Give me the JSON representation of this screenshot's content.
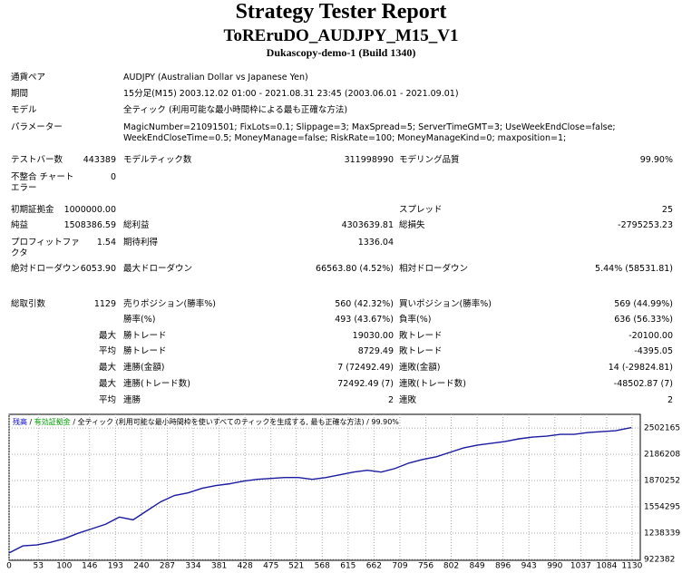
{
  "header": {
    "title": "Strategy Tester Report",
    "expert": "ToREruDO_AUDJPY_M15_V1",
    "server": "Dukascopy-demo-1 (Build 1340)"
  },
  "info": [
    [
      "通貨ペア",
      "AUDJPY (Australian Dollar vs Japanese Yen)"
    ],
    [
      "期間",
      "15分足(M15) 2003.12.02 01:00 - 2021.08.31 23:45 (2003.06.01 - 2021.09.01)"
    ],
    [
      "モデル",
      "全ティック (利用可能な最小時間枠による最も正確な方法)"
    ],
    [
      "パラメーター",
      "MagicNumber=21091501; FixLots=0.1; Slippage=3; MaxSpread=5; ServerTimeGMT=3; UseWeekEndClose=false; WeekEndCloseTime=0.5; MoneyManage=false; RiskRate=100; MoneyManageKind=0; maxposition=1;"
    ]
  ],
  "stats": [
    [
      "テストバー数",
      "443389",
      "モデルティック数",
      "311998990",
      "モデリング品質",
      "99.90%"
    ],
    [
      "不整合 チャートエラー",
      "0",
      null,
      null,
      null,
      null
    ],
    [
      "初期証拠金",
      "1000000.00",
      null,
      null,
      "スプレッド",
      "25"
    ],
    [
      "純益",
      "1508386.59",
      "総利益",
      "4303639.81",
      "総損失",
      "-2795253.23"
    ],
    [
      "プロフィットファクタ",
      "1.54",
      "期待利得",
      "1336.04",
      null,
      null
    ],
    [
      "絶対ドローダウン",
      "6053.90",
      "最大ドローダウン",
      "66563.80 (4.52%)",
      "相対ドローダウン",
      "5.44% (58531.81)"
    ],
    [
      "総取引数",
      "1129",
      "売りポジション(勝率%)",
      "560 (42.32%)",
      "買いポジション(勝率%)",
      "569 (44.99%)"
    ],
    [
      null,
      null,
      "勝率(%)",
      "493 (43.67%)",
      "負率(%)",
      "636 (56.33%)"
    ],
    [
      null,
      "最大",
      "勝トレード",
      "19030.00",
      "敗トレード",
      "-20100.00"
    ],
    [
      null,
      "平均",
      "勝トレード",
      "8729.49",
      "敗トレード",
      "-4395.05"
    ],
    [
      null,
      "最大",
      "連勝(金額)",
      "7 (72492.49)",
      "連敗(金額)",
      "14 (-29824.81)"
    ],
    [
      null,
      "最大",
      "連勝(トレード数)",
      "72492.49 (7)",
      "連敗(トレード数)",
      "-48502.87 (7)"
    ],
    [
      null,
      "平均",
      "連勝",
      "2",
      "連敗",
      "2"
    ]
  ],
  "chart_data": {
    "type": "line",
    "legend": [
      "残高",
      "有効証拠金",
      "全ティック (利用可能な最小時間枠を使いすべてのティックを生成する, 最も正確な方法)",
      "99.90%"
    ],
    "legend_colors": [
      "#0000c0",
      "#00a000",
      "#000000",
      "#000000"
    ],
    "x": [
      0,
      25,
      50,
      75,
      100,
      125,
      150,
      175,
      200,
      225,
      250,
      275,
      300,
      325,
      350,
      375,
      400,
      425,
      450,
      475,
      500,
      525,
      550,
      575,
      600,
      625,
      650,
      675,
      700,
      725,
      750,
      775,
      800,
      825,
      850,
      875,
      900,
      925,
      950,
      975,
      1000,
      1025,
      1050,
      1075,
      1100,
      1125,
      1129
    ],
    "series": [
      {
        "name": "残高",
        "color": "#1a1aa0",
        "values": [
          1000000,
          1084700,
          1095500,
          1128000,
          1171200,
          1236200,
          1290300,
          1344400,
          1430900,
          1398500,
          1506700,
          1614900,
          1690600,
          1723100,
          1777200,
          1809600,
          1831300,
          1863700,
          1885400,
          1896200,
          1907000,
          1907000,
          1885400,
          1907000,
          1939500,
          1972000,
          1993600,
          1972000,
          2015200,
          2080300,
          2123400,
          2155900,
          2210000,
          2264100,
          2296600,
          2318200,
          2339900,
          2372300,
          2394000,
          2404800,
          2426400,
          2426400,
          2448100,
          2458900,
          2469700,
          2502200,
          2508386.59
        ]
      }
    ],
    "xlim": [
      0,
      1145
    ],
    "ylim": [
      911400,
      2666700
    ],
    "xticks": [
      0,
      53,
      100,
      146,
      193,
      240,
      287,
      334,
      381,
      428,
      475,
      521,
      568,
      615,
      662,
      709,
      756,
      802,
      849,
      896,
      943,
      990,
      1037,
      1084,
      1130
    ],
    "yticks": [
      922382,
      1238339,
      1554295,
      1870252,
      2186208,
      2502165
    ],
    "grid": true
  }
}
